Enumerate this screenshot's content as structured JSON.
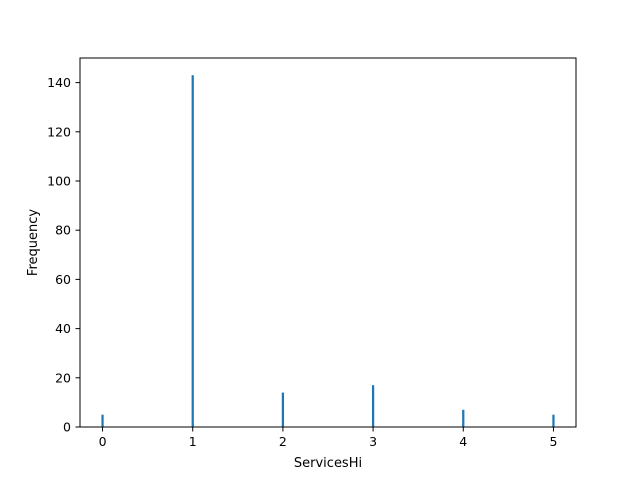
{
  "chart_data": {
    "type": "bar",
    "title": "",
    "xlabel": "ServicesHi",
    "ylabel": "Frequency",
    "xlim": [
      -0.25,
      5.25
    ],
    "ylim": [
      0,
      150
    ],
    "xticks": [
      0,
      1,
      2,
      3,
      4,
      5
    ],
    "yticks": [
      0,
      20,
      40,
      60,
      80,
      100,
      120,
      140
    ],
    "grid": false,
    "legend": "none",
    "bar_color": "#1f77b4",
    "bar_width": 0.025,
    "x": [
      0,
      1,
      2,
      3,
      4,
      5
    ],
    "values": [
      5,
      143,
      14,
      17,
      7,
      5
    ]
  }
}
